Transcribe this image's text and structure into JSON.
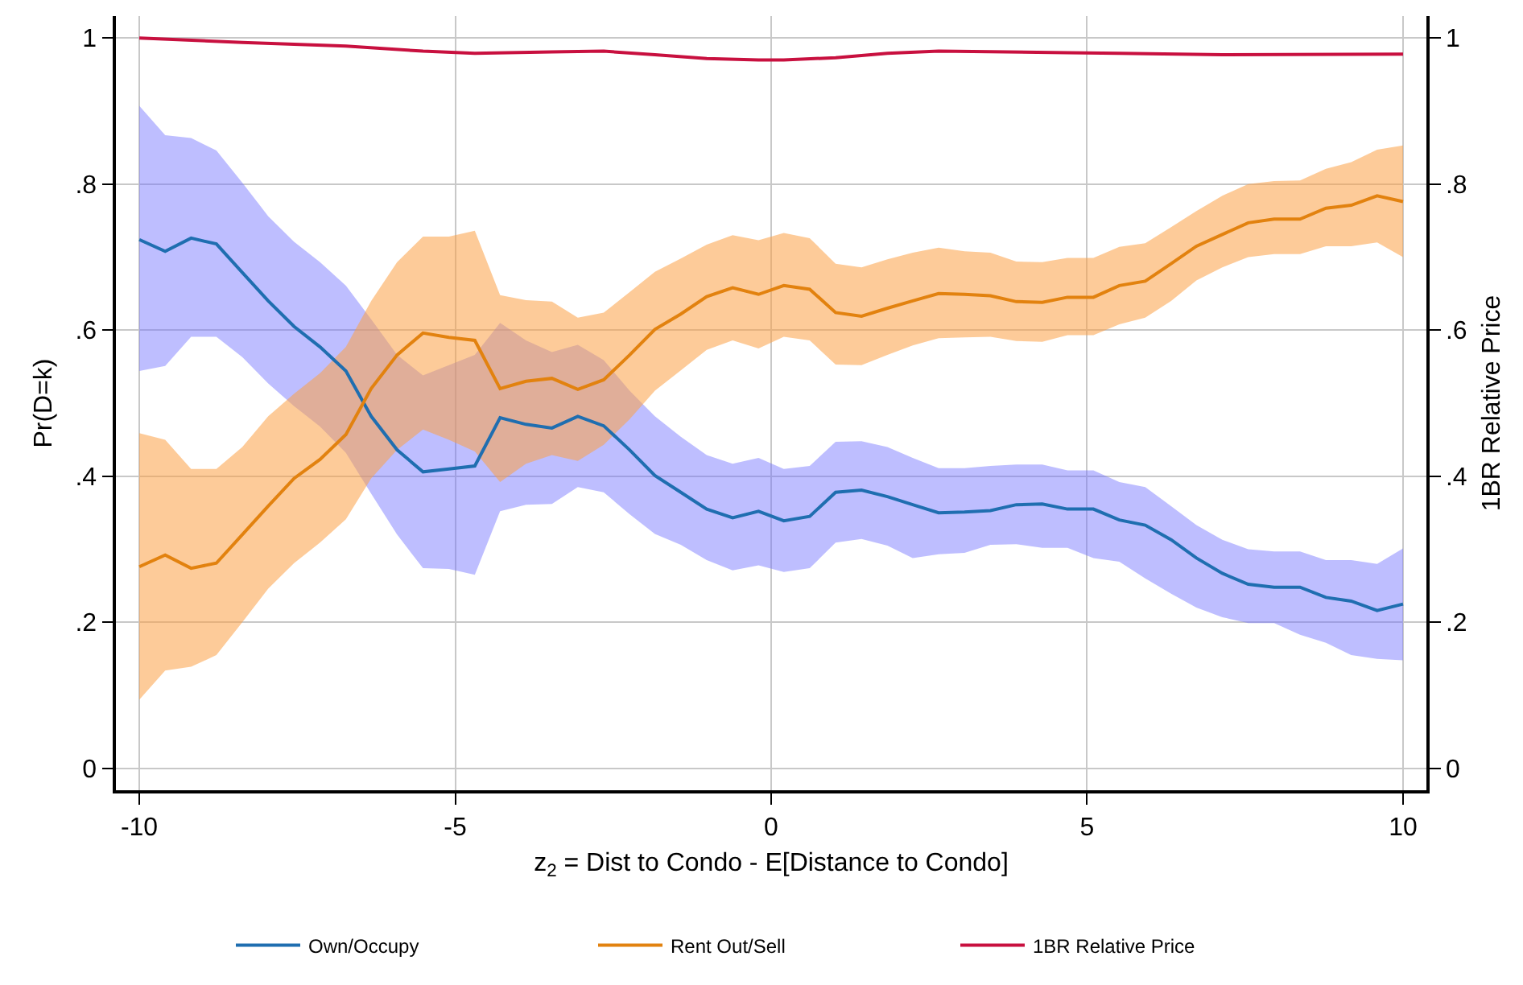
{
  "chart_data": {
    "type": "line",
    "xlabel": "z$_{2}$ = Dist to Condo - E[Distance to Condo]",
    "ylabel": "Pr(D=k)",
    "y2label": "1BR Relative Price",
    "x": [
      -10,
      -9.59,
      -9.18,
      -8.78,
      -8.37,
      -7.96,
      -7.55,
      -7.14,
      -6.73,
      -6.33,
      -5.92,
      -5.51,
      -5.1,
      -4.69,
      -4.29,
      -3.88,
      -3.47,
      -3.06,
      -2.65,
      -2.24,
      -1.84,
      -1.43,
      -1.02,
      -0.61,
      -0.2,
      0.2,
      0.61,
      1.02,
      1.43,
      1.84,
      2.24,
      2.65,
      3.06,
      3.47,
      3.88,
      4.29,
      4.69,
      5.1,
      5.51,
      5.92,
      6.33,
      6.73,
      7.14,
      7.55,
      7.96,
      8.37,
      8.78,
      9.18,
      9.59,
      10
    ],
    "series": [
      {
        "name": "Own/Occupy",
        "color": "#1f6eb0",
        "values": [
          0.724,
          0.708,
          0.726,
          0.718,
          0.679,
          0.64,
          0.605,
          0.577,
          0.544,
          0.482,
          0.436,
          0.406,
          0.41,
          0.414,
          0.48,
          0.471,
          0.466,
          0.482,
          0.469,
          0.436,
          0.401,
          0.378,
          0.355,
          0.343,
          0.352,
          0.339,
          0.345,
          0.378,
          0.381,
          0.372,
          0.361,
          0.35,
          0.351,
          0.353,
          0.361,
          0.362,
          0.355,
          0.355,
          0.34,
          0.333,
          0.313,
          0.288,
          0.267,
          0.252,
          0.248,
          0.248,
          0.234,
          0.229,
          0.216,
          0.225
        ],
        "upper": [
          0.907,
          0.867,
          0.863,
          0.846,
          0.802,
          0.756,
          0.721,
          0.693,
          0.661,
          0.615,
          0.566,
          0.538,
          0.552,
          0.566,
          0.61,
          0.586,
          0.57,
          0.58,
          0.559,
          0.517,
          0.482,
          0.454,
          0.429,
          0.417,
          0.425,
          0.41,
          0.414,
          0.447,
          0.448,
          0.44,
          0.425,
          0.411,
          0.411,
          0.414,
          0.416,
          0.416,
          0.408,
          0.408,
          0.392,
          0.385,
          0.359,
          0.333,
          0.313,
          0.3,
          0.297,
          0.297,
          0.285,
          0.285,
          0.28,
          0.301
        ],
        "lower": [
          0.544,
          0.551,
          0.591,
          0.591,
          0.563,
          0.527,
          0.496,
          0.468,
          0.432,
          0.376,
          0.32,
          0.274,
          0.273,
          0.265,
          0.352,
          0.361,
          0.362,
          0.385,
          0.378,
          0.348,
          0.321,
          0.306,
          0.285,
          0.271,
          0.278,
          0.269,
          0.274,
          0.309,
          0.314,
          0.305,
          0.288,
          0.293,
          0.295,
          0.306,
          0.307,
          0.302,
          0.302,
          0.288,
          0.283,
          0.26,
          0.239,
          0.22,
          0.207,
          0.199,
          0.199,
          0.183,
          0.172,
          0.155,
          0.15,
          0.148
        ]
      },
      {
        "name": "Rent Out/Sell",
        "color": "#e2820f",
        "values": [
          0.276,
          0.292,
          0.274,
          0.281,
          0.32,
          0.359,
          0.397,
          0.423,
          0.457,
          0.52,
          0.566,
          0.596,
          0.59,
          0.586,
          0.52,
          0.53,
          0.534,
          0.519,
          0.532,
          0.566,
          0.601,
          0.622,
          0.646,
          0.658,
          0.649,
          0.661,
          0.656,
          0.624,
          0.619,
          0.63,
          0.64,
          0.65,
          0.649,
          0.647,
          0.639,
          0.638,
          0.645,
          0.645,
          0.661,
          0.667,
          0.691,
          0.715,
          0.731,
          0.747,
          0.752,
          0.752,
          0.767,
          0.771,
          0.784,
          0.776
        ],
        "upper": [
          0.459,
          0.45,
          0.41,
          0.41,
          0.44,
          0.482,
          0.513,
          0.541,
          0.577,
          0.64,
          0.693,
          0.728,
          0.728,
          0.736,
          0.648,
          0.641,
          0.639,
          0.617,
          0.624,
          0.652,
          0.68,
          0.698,
          0.717,
          0.73,
          0.723,
          0.733,
          0.726,
          0.691,
          0.686,
          0.697,
          0.706,
          0.713,
          0.708,
          0.706,
          0.694,
          0.693,
          0.699,
          0.699,
          0.714,
          0.719,
          0.741,
          0.763,
          0.784,
          0.8,
          0.804,
          0.805,
          0.821,
          0.83,
          0.847,
          0.853
        ],
        "lower": [
          0.094,
          0.134,
          0.139,
          0.155,
          0.2,
          0.246,
          0.281,
          0.309,
          0.341,
          0.397,
          0.436,
          0.464,
          0.45,
          0.434,
          0.392,
          0.417,
          0.429,
          0.421,
          0.443,
          0.478,
          0.517,
          0.545,
          0.573,
          0.586,
          0.575,
          0.591,
          0.586,
          0.553,
          0.552,
          0.566,
          0.579,
          0.589,
          0.59,
          0.591,
          0.585,
          0.584,
          0.593,
          0.593,
          0.608,
          0.617,
          0.64,
          0.668,
          0.686,
          0.7,
          0.704,
          0.704,
          0.715,
          0.715,
          0.72,
          0.7
        ]
      },
      {
        "name": "1BR Relative Price",
        "color": "#c8103f",
        "axis": "y2",
        "x": [
          -10,
          -8.37,
          -6.73,
          -5.51,
          -4.69,
          -3.47,
          -2.65,
          -1.84,
          -1.02,
          -0.2,
          0.2,
          1.02,
          1.84,
          2.65,
          4.69,
          5.51,
          7.14,
          10
        ],
        "values": [
          1.0,
          0.994,
          0.989,
          0.982,
          0.979,
          0.981,
          0.982,
          0.977,
          0.972,
          0.97,
          0.97,
          0.973,
          0.979,
          0.982,
          0.98,
          0.979,
          0.977,
          0.978
        ]
      }
    ],
    "xlim": [
      -10.37,
      10.37
    ],
    "xticks": [
      -10,
      -5,
      0,
      5,
      10
    ],
    "ylim": [
      -0.03,
      1.03
    ],
    "yticks": [
      0,
      {
        "value": 0.2,
        "label": ".2"
      },
      {
        "value": 0.4,
        "label": ".4"
      },
      {
        "value": 0.6,
        "label": ".6"
      },
      {
        "value": 0.8,
        "label": ".8"
      },
      1
    ],
    "y2lim": [
      -0.03,
      1.03
    ],
    "y2ticks": [
      0,
      {
        "value": 0.2,
        "label": ".2"
      },
      {
        "value": 0.4,
        "label": ".4"
      },
      {
        "value": 0.6,
        "label": ".6"
      },
      {
        "value": 0.8,
        "label": ".8"
      },
      1
    ],
    "grid": true,
    "legend": "bottom",
    "marker": "none",
    "line_style": "solid"
  }
}
